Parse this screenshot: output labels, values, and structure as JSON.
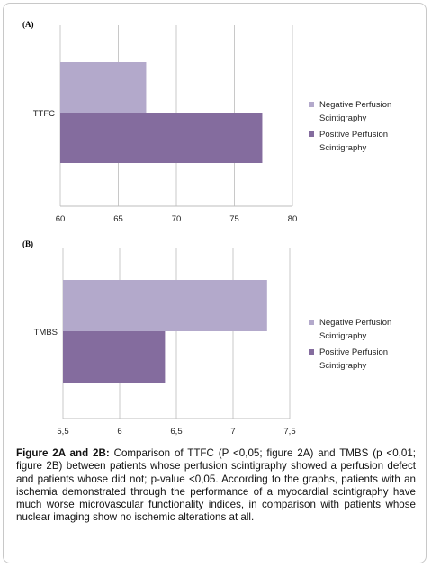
{
  "caption": {
    "label": "Figure 2A and 2B:",
    "text": "Comparison of TTFC (P <0,05; figure 2A) and TMBS (p <0,01; figure 2B) between patients whose perfusion scintigraphy showed a perfusion defect and patients whose did not; p-value <0,05. According to the graphs, patients with an ischemia demonstrated through the performance of a myocardial scintigraphy have much worse microvascular functionality indices, in comparison with patients whose nuclear imaging show no ischemic alterations at all."
  },
  "colors": {
    "negative": "#b3a9cb",
    "positive": "#846c9e",
    "grid": "#c8c8c8"
  },
  "chart_data": [
    {
      "type": "bar",
      "orientation": "horizontal",
      "panel_label": "(A)",
      "categories": [
        "TTFC"
      ],
      "series": [
        {
          "name": "Negative Perfusion Scintigraphy",
          "values": [
            67.4
          ]
        },
        {
          "name": "Positive Perfusion Scintigraphy",
          "values": [
            77.4
          ]
        }
      ],
      "xlim": [
        60,
        80
      ],
      "xticks": [
        "60",
        "65",
        "70",
        "75",
        "80"
      ],
      "grid": true,
      "legend": [
        "Negative Perfusion Scintigraphy",
        "Positive Perfusion Scintigraphy"
      ],
      "legend_position": "right"
    },
    {
      "type": "bar",
      "orientation": "horizontal",
      "panel_label": "(B)",
      "categories": [
        "TMBS"
      ],
      "series": [
        {
          "name": "Negative Perfusion Scintigraphy",
          "values": [
            7.3
          ]
        },
        {
          "name": "Positive Perfusion Scintigraphy",
          "values": [
            6.4
          ]
        }
      ],
      "xlim": [
        5.5,
        7.5
      ],
      "xticks": [
        "5,5",
        "6",
        "6,5",
        "7",
        "7,5"
      ],
      "grid": true,
      "legend": [
        "Negative Perfusion Scintigraphy",
        "Positive Perfusion Scintigraphy"
      ],
      "legend_position": "right"
    }
  ]
}
